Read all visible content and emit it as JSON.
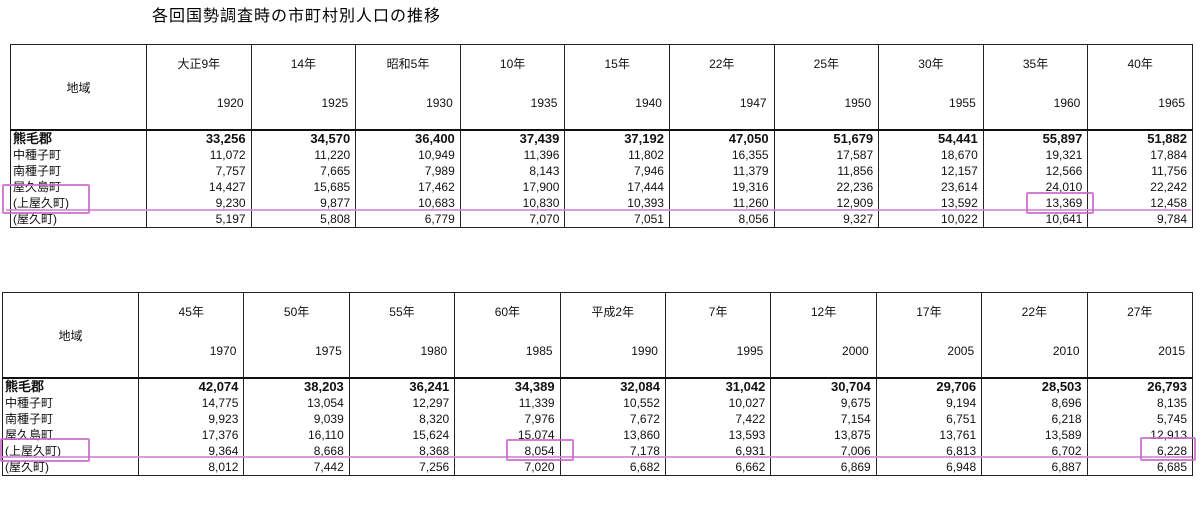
{
  "title": "各回国勢調査時の市町村別人口の推移",
  "region_header": "地域",
  "tables": [
    {
      "columns": [
        {
          "era": "大正9年",
          "year": "1920"
        },
        {
          "era": "14年",
          "year": "1925"
        },
        {
          "era": "昭和5年",
          "year": "1930"
        },
        {
          "era": "10年",
          "year": "1935"
        },
        {
          "era": "15年",
          "year": "1940"
        },
        {
          "era": "22年",
          "year": "1947"
        },
        {
          "era": "25年",
          "year": "1950"
        },
        {
          "era": "30年",
          "year": "1955"
        },
        {
          "era": "35年",
          "year": "1960"
        },
        {
          "era": "40年",
          "year": "1965"
        }
      ],
      "rows": [
        {
          "name": "熊毛郡",
          "values": [
            "33,256",
            "34,570",
            "36,400",
            "37,439",
            "37,192",
            "47,050",
            "51,679",
            "54,441",
            "55,897",
            "51,882"
          ]
        },
        {
          "name": "中種子町",
          "values": [
            "11,072",
            "11,220",
            "10,949",
            "11,396",
            "11,802",
            "16,355",
            "17,587",
            "18,670",
            "19,321",
            "17,884"
          ]
        },
        {
          "name": "南種子町",
          "values": [
            "7,757",
            "7,665",
            "7,989",
            "8,143",
            "7,946",
            "11,379",
            "11,856",
            "12,157",
            "12,566",
            "11,756"
          ]
        },
        {
          "name": "屋久島町",
          "values": [
            "14,427",
            "15,685",
            "17,462",
            "17,900",
            "17,444",
            "19,316",
            "22,236",
            "23,614",
            "24,010",
            "22,242"
          ]
        },
        {
          "name": "(上屋久町)",
          "values": [
            "9,230",
            "9,877",
            "10,683",
            "10,830",
            "10,393",
            "11,260",
            "12,909",
            "13,592",
            "13,369",
            "12,458"
          ]
        },
        {
          "name": "(屋久町)",
          "values": [
            "5,197",
            "5,808",
            "6,779",
            "7,070",
            "7,051",
            "8,056",
            "9,327",
            "10,022",
            "10,641",
            "9,784"
          ]
        }
      ]
    },
    {
      "columns": [
        {
          "era": "45年",
          "year": "1970"
        },
        {
          "era": "50年",
          "year": "1975"
        },
        {
          "era": "55年",
          "year": "1980"
        },
        {
          "era": "60年",
          "year": "1985"
        },
        {
          "era": "平成2年",
          "year": "1990"
        },
        {
          "era": "7年",
          "year": "1995"
        },
        {
          "era": "12年",
          "year": "2000"
        },
        {
          "era": "17年",
          "year": "2005"
        },
        {
          "era": "22年",
          "year": "2010"
        },
        {
          "era": "27年",
          "year": "2015"
        }
      ],
      "rows": [
        {
          "name": "熊毛郡",
          "values": [
            "42,074",
            "38,203",
            "36,241",
            "34,389",
            "32,084",
            "31,042",
            "30,704",
            "29,706",
            "28,503",
            "26,793"
          ]
        },
        {
          "name": "中種子町",
          "values": [
            "14,775",
            "13,054",
            "12,297",
            "11,339",
            "10,552",
            "10,027",
            "9,675",
            "9,194",
            "8,696",
            "8,135"
          ]
        },
        {
          "name": "南種子町",
          "values": [
            "9,923",
            "9,039",
            "8,320",
            "7,976",
            "7,672",
            "7,422",
            "7,154",
            "6,751",
            "6,218",
            "5,745"
          ]
        },
        {
          "name": "屋久島町",
          "values": [
            "17,376",
            "16,110",
            "15,624",
            "15,074",
            "13,860",
            "13,593",
            "13,875",
            "13,761",
            "13,589",
            "12,913"
          ]
        },
        {
          "name": "(上屋久町)",
          "values": [
            "9,364",
            "8,668",
            "8,368",
            "8,054",
            "7,178",
            "6,931",
            "7,006",
            "6,813",
            "6,702",
            "6,228"
          ]
        },
        {
          "name": "(屋久町)",
          "values": [
            "8,012",
            "7,442",
            "7,256",
            "7,020",
            "6,682",
            "6,662",
            "6,869",
            "6,948",
            "6,887",
            "6,685"
          ]
        }
      ]
    }
  ],
  "highlight_color": "#cc66cc"
}
